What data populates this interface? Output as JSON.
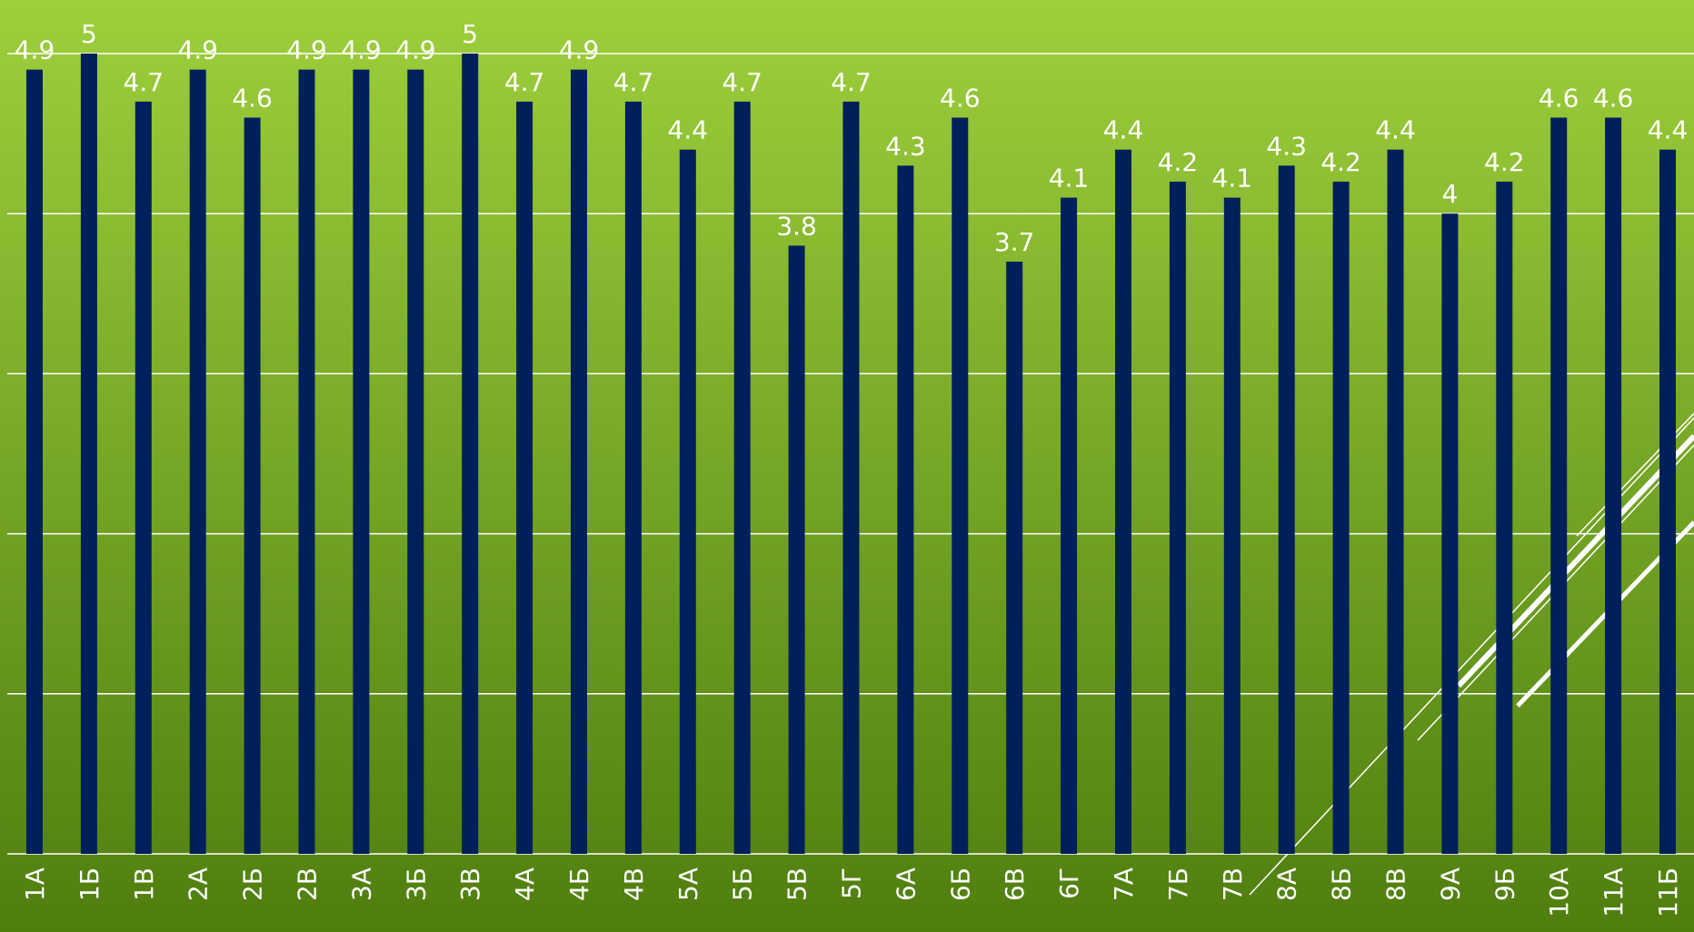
{
  "chart_data": {
    "type": "bar",
    "categories": [
      "1А",
      "1Б",
      "1В",
      "2А",
      "2Б",
      "2В",
      "3А",
      "3Б",
      "3В",
      "4А",
      "4Б",
      "4В",
      "5А",
      "5Б",
      "5В",
      "5Г",
      "6А",
      "6Б",
      "6В",
      "6Г",
      "7А",
      "7Б",
      "7В",
      "8А",
      "8Б",
      "8В",
      "9А",
      "9Б",
      "10А",
      "11А",
      "11Б"
    ],
    "values": [
      4.9,
      5,
      4.7,
      4.9,
      4.6,
      4.9,
      4.9,
      4.9,
      5,
      4.7,
      4.9,
      4.7,
      4.4,
      4.7,
      3.8,
      4.7,
      4.3,
      4.6,
      3.7,
      4.1,
      4.4,
      4.2,
      4.1,
      4.3,
      4.2,
      4.4,
      4,
      4.2,
      4.6,
      4.6,
      4.4
    ],
    "color": "#00205b",
    "ylim": [
      0,
      5
    ],
    "yticks": [
      0,
      1,
      2,
      3,
      4,
      5
    ],
    "grid": true
  }
}
